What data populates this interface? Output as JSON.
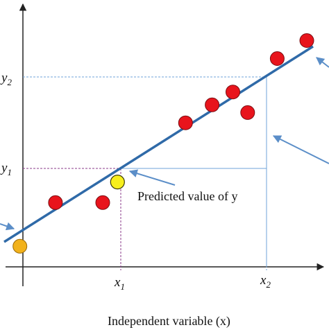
{
  "colors": {
    "regression_line": "#2f6aa8",
    "guide_lines": "#6fa3d8",
    "arrow": "#5b8ec8",
    "data_point_fill": "#e8141c",
    "data_point_stroke": "#7a0d12",
    "predicted_point_fill": "#f7ef1e",
    "intercept_point_fill": "#f2b21b",
    "x1_guide": "#8a3a8a",
    "axis": "#222222"
  },
  "chart_data": {
    "type": "scatter",
    "xlabel": "Independent variable (x)",
    "ylabel": "",
    "title": "",
    "xlim": [
      0,
      10
    ],
    "ylim": [
      0,
      10
    ],
    "grid": false,
    "points": [
      {
        "x": 1.1,
        "y": 2.5
      },
      {
        "x": 2.7,
        "y": 2.5
      },
      {
        "x": 5.5,
        "y": 5.6
      },
      {
        "x": 6.4,
        "y": 6.3
      },
      {
        "x": 7.1,
        "y": 6.8
      },
      {
        "x": 7.6,
        "y": 6.0
      },
      {
        "x": 8.6,
        "y": 8.1
      },
      {
        "x": 9.6,
        "y": 8.8
      }
    ],
    "regression_line": {
      "x_start": -0.7,
      "x_end": 10.2,
      "slope": 0.76,
      "intercept": 0.85
    },
    "intercept_point": {
      "x": -0.1,
      "y": 0.8
    },
    "predicted_point": {
      "x": 3.2,
      "y": 3.3
    },
    "x2_value": 8.2,
    "labels": {
      "x1": "x",
      "x1_sub": "1",
      "x2": "x",
      "x2_sub": "2",
      "y1": "y",
      "y1_sub": "1",
      "y2": "y",
      "y2_sub": "2",
      "predicted": "Predicted value of y"
    }
  }
}
